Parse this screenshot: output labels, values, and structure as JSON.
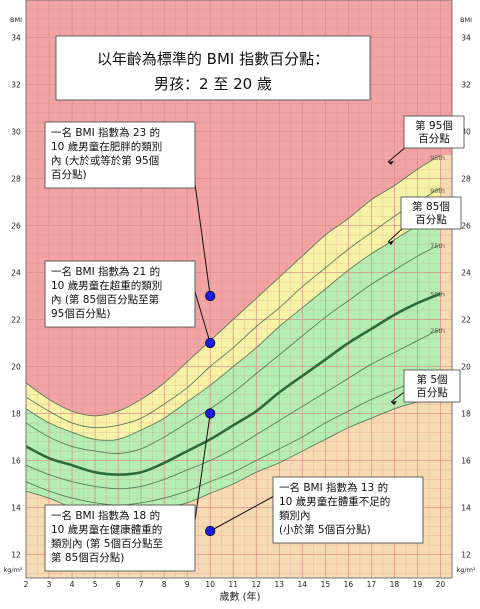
{
  "chart_data": {
    "type": "area",
    "title_lines": [
      "以年齡為標準的 BMI 指數百分點：",
      "男孩：2 至 20 歲"
    ],
    "xlabel": "歲數 (年)",
    "ylabel_top": "BMI",
    "ylabel_bottom": "kg/m²",
    "xlim": [
      2,
      20.5
    ],
    "ylim": [
      11,
      35.6
    ],
    "x_ticks": [
      2,
      3,
      4,
      5,
      6,
      7,
      8,
      9,
      10,
      11,
      12,
      13,
      14,
      15,
      16,
      17,
      18,
      19,
      20
    ],
    "y_ticks": [
      12,
      14,
      16,
      18,
      20,
      22,
      24,
      26,
      28,
      30,
      32,
      34
    ],
    "zone_colors": {
      "obese": "#f2a3a3",
      "overweight": "#f6f3a6",
      "healthy": "#b4eeb2",
      "underweight": "#f6dab1",
      "grid": "#d98c8c",
      "median_line": "#2e6b3a",
      "percentile_line": "#5a7c5c",
      "marker": "#1c1cdc"
    },
    "x": [
      2,
      3,
      4,
      5,
      6,
      7,
      8,
      9,
      10,
      11,
      12,
      13,
      14,
      15,
      16,
      17,
      18,
      19,
      20
    ],
    "series": [
      {
        "name": "5th",
        "values": [
          14.7,
          14.4,
          14.0,
          13.8,
          13.8,
          13.8,
          14.0,
          14.2,
          14.6,
          15.0,
          15.5,
          15.9,
          16.4,
          16.9,
          17.4,
          17.8,
          18.2,
          18.5,
          18.8
        ]
      },
      {
        "name": "10th",
        "values": [
          15.1,
          14.7,
          14.4,
          14.2,
          14.1,
          14.2,
          14.4,
          14.7,
          15.1,
          15.5,
          16.0,
          16.5,
          17.0,
          17.6,
          18.1,
          18.6,
          19.0,
          19.4,
          19.7
        ]
      },
      {
        "name": "25th",
        "values": [
          15.8,
          15.4,
          15.1,
          14.9,
          14.8,
          14.9,
          15.2,
          15.6,
          16.0,
          16.5,
          17.1,
          17.7,
          18.3,
          18.9,
          19.5,
          20.1,
          20.6,
          21.1,
          21.6
        ]
      },
      {
        "name": "50th",
        "values": [
          16.6,
          16.1,
          15.8,
          15.5,
          15.4,
          15.5,
          15.9,
          16.4,
          16.9,
          17.5,
          18.1,
          18.9,
          19.6,
          20.3,
          21.0,
          21.6,
          22.2,
          22.7,
          23.1
        ]
      },
      {
        "name": "75th",
        "values": [
          17.6,
          17.0,
          16.6,
          16.4,
          16.3,
          16.5,
          17.0,
          17.6,
          18.2,
          18.9,
          19.7,
          20.5,
          21.3,
          22.1,
          22.8,
          23.5,
          24.1,
          24.7,
          25.2
        ]
      },
      {
        "name": "85th",
        "values": [
          18.2,
          17.6,
          17.2,
          16.9,
          16.9,
          17.3,
          17.8,
          18.5,
          19.2,
          20.0,
          20.8,
          21.7,
          22.5,
          23.3,
          24.1,
          24.8,
          25.4,
          26.0,
          26.5
        ]
      },
      {
        "name": "90th",
        "values": [
          18.7,
          18.1,
          17.6,
          17.4,
          17.5,
          17.8,
          18.4,
          19.1,
          20.0,
          20.8,
          21.7,
          22.5,
          23.4,
          24.2,
          25.0,
          25.7,
          26.4,
          27.0,
          27.6
        ]
      },
      {
        "name": "95th",
        "values": [
          19.3,
          18.6,
          18.1,
          17.9,
          18.1,
          18.6,
          19.3,
          20.2,
          21.1,
          22.0,
          22.9,
          23.8,
          24.7,
          25.6,
          26.3,
          27.1,
          27.7,
          28.4,
          29.0
        ]
      }
    ],
    "percentile_labels": [
      "5th",
      "10th",
      "25th",
      "50th",
      "75th",
      "90th",
      "95th"
    ],
    "zone_labels": [
      {
        "text_lines": [
          "第 95個",
          "百分點"
        ],
        "series": "95th"
      },
      {
        "text_lines": [
          "第 85個",
          "百分點"
        ],
        "series": "85th"
      },
      {
        "text_lines": [
          "第 5個",
          "百分點"
        ],
        "series": "5th"
      }
    ],
    "examples": [
      {
        "x": 10,
        "y": 23,
        "text_lines": [
          "一名 BMI 指數為 23 的",
          "10 歲男童在肥胖的類別",
          "內 (大於或等於第 95個",
          "百分點)"
        ]
      },
      {
        "x": 10,
        "y": 21,
        "text_lines": [
          "一名 BMI 指數為 21 的",
          "10 歲男童在超重的類別",
          "內 (第 85個百分點至第",
          "95個百分點)"
        ]
      },
      {
        "x": 10,
        "y": 18,
        "text_lines": [
          "一名 BMI 指數為 18 的",
          "10 歲男童在健康體重的",
          "類別內 (第 5個百分點至",
          "第 85個百分點)"
        ]
      },
      {
        "x": 10,
        "y": 13,
        "text_lines": [
          "一名 BMI 指數為 13 的",
          "10 歲男童在體重不足的",
          "類別內",
          "(小於第 5個百分點)"
        ]
      }
    ]
  }
}
